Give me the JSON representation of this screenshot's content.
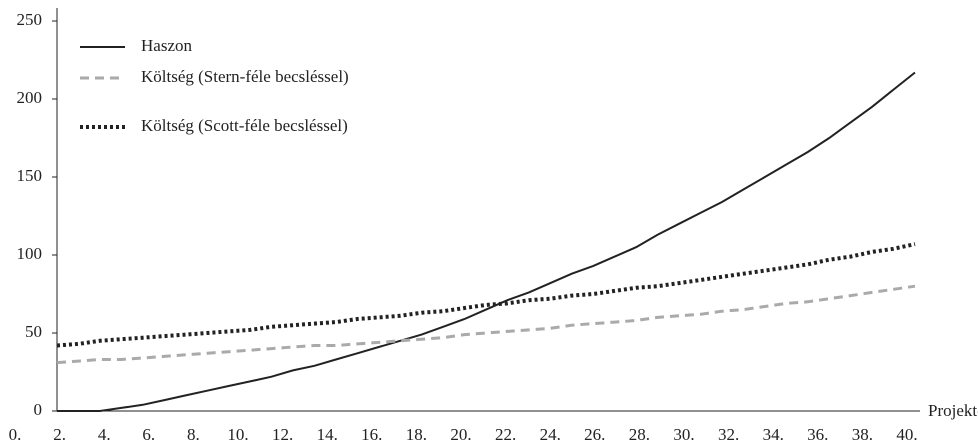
{
  "chart_data": {
    "type": "line",
    "x_label": "Projektév",
    "categories": [
      "0.",
      null,
      "2.",
      null,
      "4.",
      null,
      "6.",
      null,
      "8.",
      null,
      "10.",
      null,
      "12.",
      null,
      "14.",
      null,
      "16.",
      null,
      "18.",
      null,
      "20.",
      null,
      "22.",
      null,
      "24.",
      null,
      "26.",
      null,
      "28.",
      null,
      "30.",
      null,
      "32.",
      null,
      "34.",
      null,
      "36.",
      null,
      "38.",
      null,
      "40."
    ],
    "series": [
      {
        "name": "Haszon",
        "color": "#222222",
        "dash": "solid",
        "values": [
          0,
          0,
          0,
          2,
          4,
          7,
          10,
          13,
          16,
          19,
          22,
          26,
          29,
          33,
          37,
          41,
          45,
          49,
          54,
          59,
          65,
          71,
          76,
          82,
          88,
          93,
          99,
          105,
          113,
          120,
          127,
          134,
          142,
          150,
          158,
          166,
          175,
          185,
          195,
          206,
          217
        ]
      },
      {
        "name": "Költség (Stern-féle becsléssel)",
        "color": "#aaaaaa",
        "dash": "dashed",
        "values": [
          31,
          32,
          33,
          33,
          34,
          35,
          36,
          37,
          38,
          39,
          40,
          41,
          42,
          42,
          43,
          44,
          45,
          46,
          47,
          49,
          50,
          51,
          52,
          53,
          55,
          56,
          57,
          58,
          60,
          61,
          62,
          64,
          65,
          67,
          69,
          70,
          72,
          74,
          76,
          78,
          80
        ]
      },
      {
        "name": "Költség (Scott-féle becsléssel)",
        "color": "#222222",
        "dash": "dotted",
        "values": [
          42,
          43,
          45,
          46,
          47,
          48,
          49,
          50,
          51,
          52,
          54,
          55,
          56,
          57,
          59,
          60,
          61,
          63,
          64,
          66,
          68,
          69,
          71,
          72,
          74,
          75,
          77,
          79,
          80,
          82,
          84,
          86,
          88,
          90,
          92,
          94,
          97,
          99,
          102,
          104,
          107
        ]
      }
    ],
    "ylim": [
      0,
      250
    ],
    "yticks": [
      0,
      50,
      100,
      150,
      200,
      250
    ],
    "legend": "top-left",
    "grid": false
  }
}
